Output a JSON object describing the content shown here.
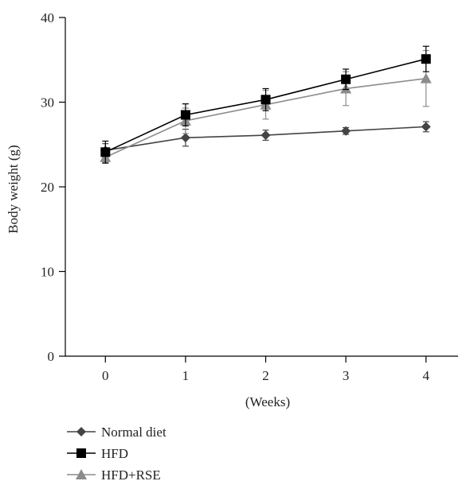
{
  "chart_data": {
    "type": "line",
    "title": "",
    "xlabel": "(Weeks)",
    "ylabel": "Body weight (g)",
    "x": [
      0,
      1,
      2,
      3,
      4
    ],
    "xlim": [
      -0.5,
      4.4
    ],
    "ylim": [
      0,
      40
    ],
    "xticks": [
      0,
      1,
      2,
      3,
      4
    ],
    "yticks": [
      0,
      10,
      20,
      30,
      40
    ],
    "grid": false,
    "legend_position": "bottom-left",
    "series": [
      {
        "name": "Normal diet",
        "marker": "diamond",
        "color": "#444444",
        "values": [
          24.3,
          25.8,
          26.1,
          26.6,
          27.1
        ],
        "errors": [
          0.8,
          1.0,
          0.6,
          0.4,
          0.6
        ]
      },
      {
        "name": "HFD",
        "marker": "square",
        "color": "#000000",
        "values": [
          24.1,
          28.5,
          30.3,
          32.7,
          35.1
        ],
        "errors": [
          1.3,
          1.3,
          1.3,
          1.2,
          1.5
        ]
      },
      {
        "name": "HFD+RSE",
        "marker": "triangle",
        "color": "#8c8c8c",
        "values": [
          23.5,
          27.8,
          29.7,
          31.6,
          32.8
        ],
        "errors": [
          0.6,
          1.5,
          1.7,
          2.0,
          3.3
        ]
      }
    ]
  }
}
